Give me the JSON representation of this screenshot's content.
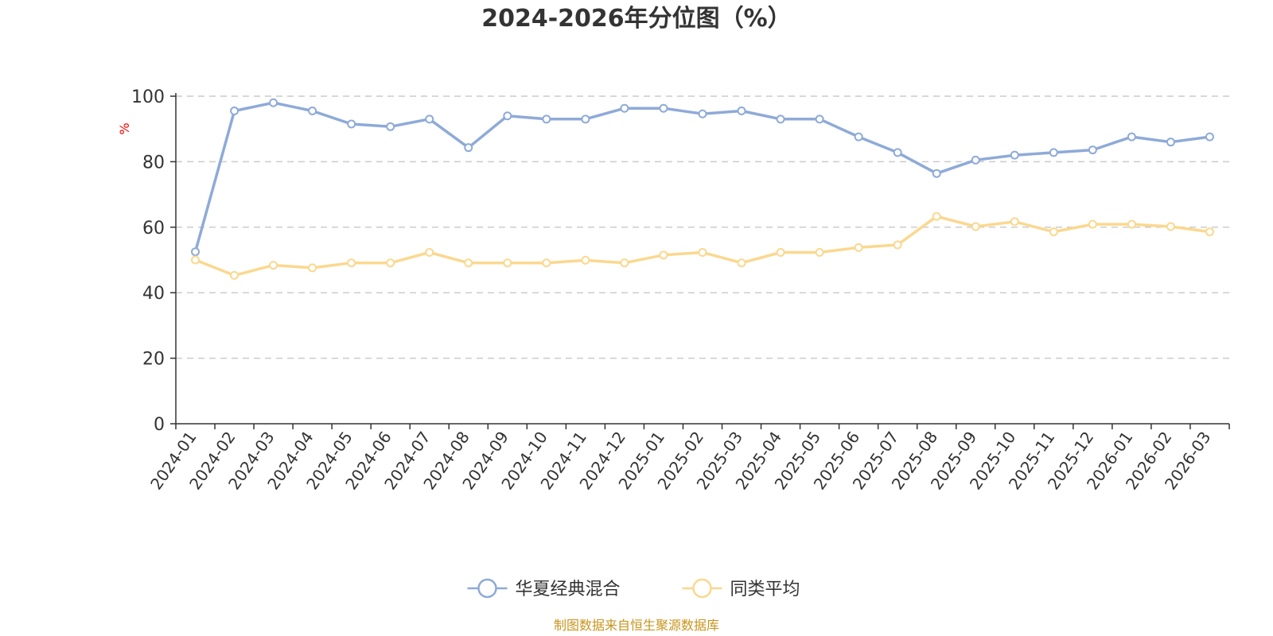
{
  "chart_data": {
    "type": "line",
    "title": "2024-2026年分位图（%）",
    "ylabel": "%",
    "ylim": [
      0,
      100
    ],
    "yticks": [
      0,
      20,
      40,
      60,
      80,
      100
    ],
    "grid": true,
    "legend_position": "bottom-center",
    "categories": [
      "2024-01",
      "2024-02",
      "2024-03",
      "2024-04",
      "2024-05",
      "2024-06",
      "2024-07",
      "2024-08",
      "2024-09",
      "2024-10",
      "2024-11",
      "2024-12",
      "2025-01",
      "2025-02",
      "2025-03",
      "2025-04",
      "2025-05",
      "2025-06",
      "2025-07",
      "2025-08",
      "2025-09",
      "2025-10",
      "2025-11",
      "2025-12",
      "2026-01",
      "2026-02",
      "2026-03"
    ],
    "series": [
      {
        "name": "华夏经典混合",
        "color": "#8eaad8",
        "values": [
          52.5,
          95.5,
          98,
          95.5,
          91.5,
          90.7,
          93,
          84.3,
          94,
          93,
          93,
          96.3,
          96.3,
          94.6,
          95.5,
          93,
          93,
          87.6,
          82.8,
          76.4,
          80.5,
          82,
          82.8,
          83.6,
          87.6,
          86,
          87.6
        ]
      },
      {
        "name": "同类平均",
        "color": "#fbd88f",
        "values": [
          50,
          45.3,
          48.4,
          47.6,
          49.1,
          49.1,
          52.3,
          49.1,
          49.1,
          49.1,
          49.9,
          49.1,
          51.5,
          52.3,
          49.1,
          52.3,
          52.3,
          53.8,
          54.6,
          63.3,
          60.2,
          61.7,
          58.6,
          60.9,
          60.9,
          60.2,
          58.6
        ]
      }
    ]
  },
  "source": "制图数据来自恒生聚源数据库"
}
